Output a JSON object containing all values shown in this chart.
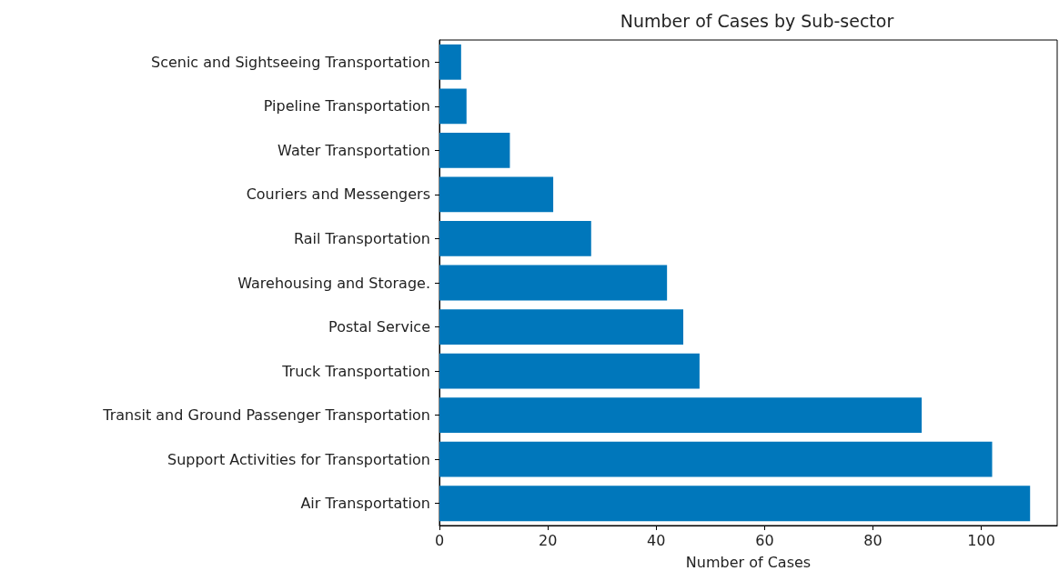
{
  "chart_data": {
    "type": "bar",
    "orientation": "horizontal",
    "title": "Number of Cases by Sub-sector",
    "xlabel": "Number of Cases",
    "categories": [
      "Scenic and Sightseeing Transportation",
      "Pipeline Transportation",
      "Water Transportation",
      "Couriers and Messengers",
      "Rail Transportation",
      "Warehousing and Storage.",
      "Postal Service",
      "Truck Transportation",
      "Transit and Ground Passenger Transportation",
      "Support Activities for Transportation",
      "Air Transportation"
    ],
    "values": [
      4,
      5,
      13,
      21,
      28,
      42,
      45,
      48,
      89,
      102,
      109
    ],
    "color": "#0077bb",
    "xlim": [
      0,
      114
    ],
    "xticks": [
      0,
      20,
      40,
      60,
      80,
      100
    ],
    "grid": false
  }
}
